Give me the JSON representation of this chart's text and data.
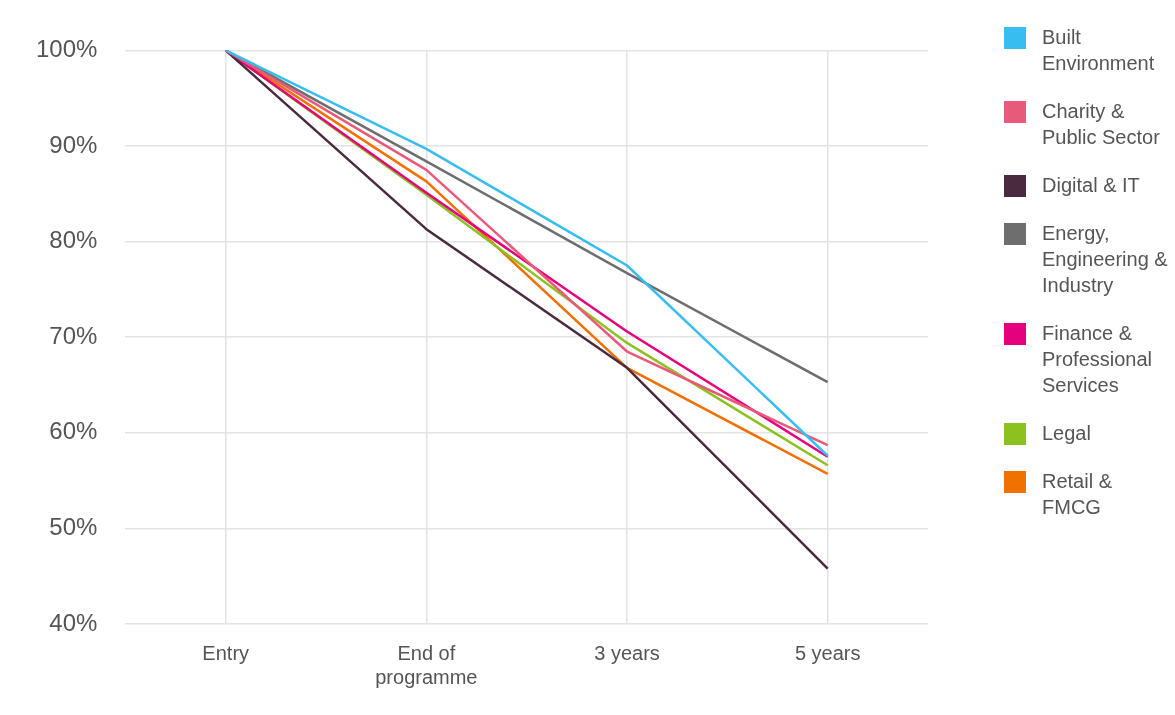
{
  "chart_data": {
    "type": "line",
    "categories": [
      "Entry",
      "End of programme",
      "3 years",
      "5 years"
    ],
    "ylim": [
      40,
      100
    ],
    "yticks": [
      {
        "value": 40,
        "label": "40%"
      },
      {
        "value": 50,
        "label": "50%"
      },
      {
        "value": 60,
        "label": "60%"
      },
      {
        "value": 70,
        "label": "70%"
      },
      {
        "value": 80,
        "label": "80%"
      },
      {
        "value": 90,
        "label": "90%"
      },
      {
        "value": 100,
        "label": "100%"
      }
    ],
    "grid": true,
    "legend": "right",
    "marker": "none",
    "line_style": "solid",
    "series": [
      {
        "name": "Built Environment",
        "color": "#38bdf0",
        "values": [
          100,
          89.7,
          77.5,
          57.6
        ]
      },
      {
        "name": "Charity & Public Sector",
        "color": "#e85a7a",
        "values": [
          100,
          87.5,
          68.5,
          58.7
        ]
      },
      {
        "name": "Digital & IT",
        "color": "#4a2a3e",
        "values": [
          100,
          81.3,
          66.8,
          45.8
        ]
      },
      {
        "name": "Energy, Engineering & Industry",
        "color": "#6e6e6e",
        "values": [
          100,
          88.4,
          76.7,
          65.3
        ]
      },
      {
        "name": "Finance & Professional Services",
        "color": "#e5007d",
        "values": [
          100,
          85.1,
          70.6,
          57.5
        ]
      },
      {
        "name": "Legal",
        "color": "#8cc21f",
        "values": [
          100,
          84.9,
          69.4,
          56.6
        ]
      },
      {
        "name": "Retail & FMCG",
        "color": "#f07000",
        "values": [
          100,
          86.3,
          66.8,
          55.7
        ]
      }
    ]
  }
}
